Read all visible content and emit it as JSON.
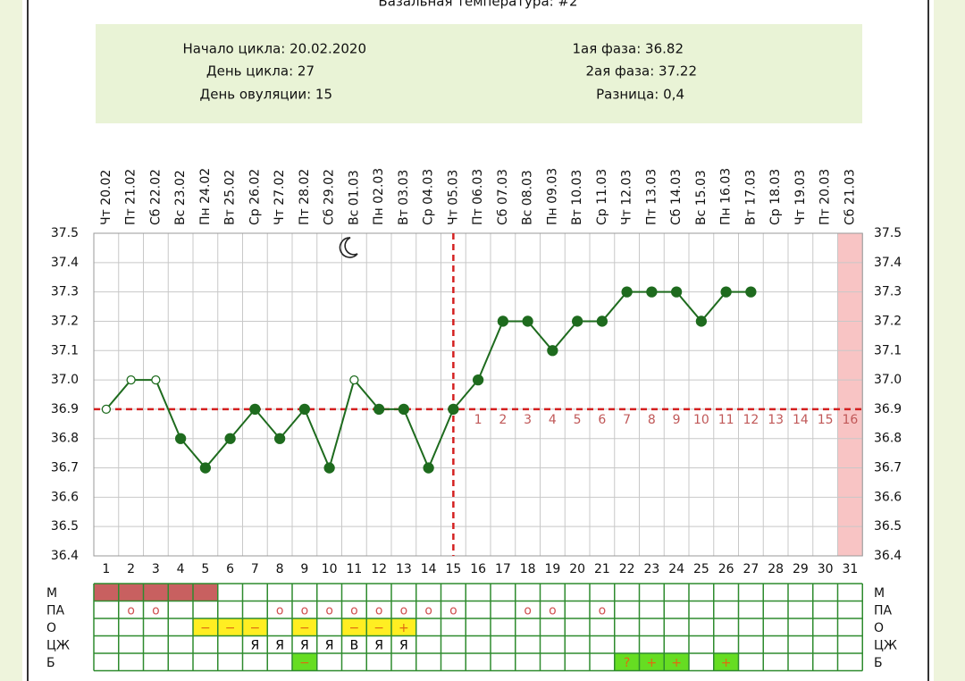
{
  "title": "Базальная температура: #2",
  "info": {
    "left": [
      "Начало цикла: 20.02.2020",
      "День цикла: 27",
      "День овуляции: 15"
    ],
    "right": [
      "1ая фаза: 36.82",
      "2ая фаза: 37.22",
      "Разница: 0,4"
    ]
  },
  "chart_data": {
    "type": "line",
    "categories": [
      "Чт 20.02",
      "Пт 21.02",
      "Сб 22.02",
      "Вс 23.02",
      "Пн 24.02",
      "Вт 25.02",
      "Ср 26.02",
      "Чт 27.02",
      "Пт 28.02",
      "Сб 29.02",
      "Вс 01.03",
      "Пн 02.03",
      "Вт 03.03",
      "Ср 04.03",
      "Чт 05.03",
      "Пт 06.03",
      "Сб 07.03",
      "Вс 08.03",
      "Пн 09.03",
      "Вт 10.03",
      "Ср 11.03",
      "Чт 12.03",
      "Пт 13.03",
      "Сб 14.03",
      "Вс 15.03",
      "Пн 16.03",
      "Вт 17.03",
      "Ср 18.03",
      "Чт 19.03",
      "Пт 20.03",
      "Сб 21.03"
    ],
    "day_numbers": [
      1,
      2,
      3,
      4,
      5,
      6,
      7,
      8,
      9,
      10,
      11,
      12,
      13,
      14,
      15,
      16,
      17,
      18,
      19,
      20,
      21,
      22,
      23,
      24,
      25,
      26,
      27,
      28,
      29,
      30,
      31
    ],
    "values": [
      36.9,
      37.0,
      37.0,
      36.8,
      36.7,
      36.8,
      36.9,
      36.8,
      36.9,
      36.7,
      37.0,
      36.9,
      36.9,
      36.7,
      36.9,
      37.0,
      37.2,
      37.2,
      37.1,
      37.2,
      37.2,
      37.3,
      37.3,
      37.3,
      37.2,
      37.3,
      37.3,
      null,
      null,
      null,
      null
    ],
    "color": "#1e6b1e",
    "hollow_points": [
      0,
      1,
      2,
      10
    ],
    "ylim": [
      36.4,
      37.5
    ],
    "yticks": [
      36.4,
      36.5,
      36.6,
      36.7,
      36.8,
      36.9,
      {
        "value": 37,
        "label": "37.0"
      },
      37.1,
      37.2,
      37.3,
      37.4,
      37.5
    ],
    "grid": true,
    "coverline": {
      "value": 36.9,
      "color": "#d42020"
    },
    "ovulation_day": 15,
    "luteal_days": [
      1,
      2,
      3,
      4,
      5,
      6,
      7,
      8,
      9,
      10,
      11,
      12,
      13,
      14,
      15,
      16
    ],
    "luteal_color": "#c05858",
    "highlight_day": 31,
    "highlight_color": "#f8c4c4"
  },
  "table": {
    "rows": [
      {
        "label": "М",
        "cells": [
          null,
          null,
          null,
          null,
          null,
          null,
          null,
          null,
          null,
          null,
          null,
          null,
          null,
          null,
          null,
          null,
          null,
          null,
          null,
          null,
          null,
          null,
          null,
          null,
          null,
          null,
          null,
          null,
          null,
          null,
          null
        ],
        "fill": "#c86060",
        "filled": [
          0,
          1,
          2,
          3,
          4
        ],
        "text_color": "#000"
      },
      {
        "label": "ПА",
        "cells": [
          null,
          "o",
          "o",
          null,
          null,
          null,
          null,
          "o",
          "o",
          "o",
          "o",
          "o",
          "o",
          "o",
          "o",
          null,
          null,
          "o",
          "o",
          null,
          "o",
          null,
          null,
          null,
          null,
          null,
          null,
          null,
          null,
          null,
          null
        ],
        "fill": "#ffffff",
        "filled": [],
        "text_color": "#d05050"
      },
      {
        "label": "О",
        "cells": [
          null,
          null,
          null,
          null,
          "−",
          "−",
          "−",
          null,
          "−",
          null,
          "−",
          "−",
          "+",
          null,
          null,
          null,
          null,
          null,
          null,
          null,
          null,
          null,
          null,
          null,
          null,
          null,
          null,
          null,
          null,
          null,
          null
        ],
        "fill": "#ffee22",
        "filled": [
          4,
          5,
          6,
          8,
          10,
          11,
          12
        ],
        "text_color": "#e06a10"
      },
      {
        "label": "ЦЖ",
        "cells": [
          null,
          null,
          null,
          null,
          null,
          null,
          "Я",
          "Я",
          "Я",
          "Я",
          "В",
          "Я",
          "Я",
          null,
          null,
          null,
          null,
          null,
          null,
          null,
          null,
          null,
          null,
          null,
          null,
          null,
          null,
          null,
          null,
          null,
          null
        ],
        "fill": "#ffffff",
        "filled": [],
        "text_color": "#000"
      },
      {
        "label": "Б",
        "cells": [
          null,
          null,
          null,
          null,
          null,
          null,
          null,
          null,
          "−",
          null,
          null,
          null,
          null,
          null,
          null,
          null,
          null,
          null,
          null,
          null,
          null,
          "?",
          "+",
          "+",
          null,
          "+",
          null,
          null,
          null,
          null,
          null
        ],
        "fill": "#66dd22",
        "filled": [
          8,
          21,
          22,
          23,
          25
        ],
        "text_color": "#e06a10"
      }
    ]
  }
}
